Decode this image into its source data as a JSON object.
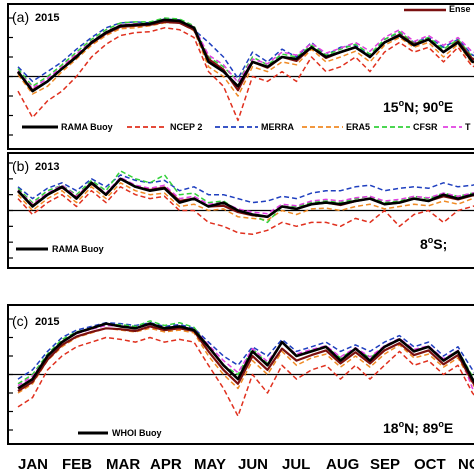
{
  "colors": {
    "rama_buoy": "#000000",
    "ncep2": "#e0301e",
    "merra": "#1f3fbf",
    "era5": "#f08a24",
    "cfsr": "#33d13a",
    "tropflux": "#e040e0",
    "ensemble": "#7a1010",
    "whoi_buoy": "#000000"
  },
  "x_axis": {
    "months": [
      "JAN",
      "FEB",
      "MAR",
      "APR",
      "MAY",
      "JUN",
      "JUL",
      "AUG",
      "SEP",
      "OCT",
      "NO"
    ]
  },
  "chart_data": [
    {
      "type": "line",
      "panel_label": "(a)",
      "year": "2015",
      "location": "15°N; 90°E",
      "location_parts": [
        "15",
        "o",
        "N; 90",
        "o",
        "E"
      ],
      "legend_items": [
        "RAMA Buoy",
        "NCEP 2",
        "MERRA",
        "ERA5",
        "CFSR",
        "T"
      ],
      "ensemble_legend": "Ense",
      "xlim": [
        0,
        10.6
      ],
      "ylim": [
        -6,
        6
      ],
      "zero_line": 0,
      "grid": false,
      "x": [
        0,
        0.33,
        0.67,
        1,
        1.33,
        1.67,
        2,
        2.33,
        2.67,
        3,
        3.33,
        3.67,
        4,
        4.33,
        4.67,
        5,
        5.33,
        5.67,
        6,
        6.33,
        6.67,
        7,
        7.33,
        7.67,
        8,
        8.33,
        8.67,
        9,
        9.33,
        9.67,
        10,
        10.33,
        10.6
      ],
      "series": [
        {
          "name": "RAMA Buoy",
          "values": [
            0.5,
            -1.5,
            -0.5,
            0.8,
            2.0,
            3.5,
            4.5,
            5.2,
            5.3,
            5.4,
            5.8,
            5.7,
            5.0,
            1.5,
            0.5,
            -1.0,
            1.5,
            1.0,
            2.0,
            1.8,
            3.0,
            2.0,
            2.5,
            3.0,
            2.0,
            3.5,
            4.2,
            3.2,
            3.8,
            2.5,
            3.5,
            1.5,
            1.8
          ]
        },
        {
          "name": "NCEP 2",
          "values": [
            -1.5,
            -4.2,
            -2.5,
            -1.5,
            0.0,
            2.0,
            3.3,
            4.2,
            4.5,
            4.6,
            5.0,
            4.8,
            4.0,
            0.5,
            -1.0,
            -4.5,
            0.0,
            -0.5,
            0.5,
            -0.5,
            2.0,
            0.5,
            1.0,
            2.0,
            0.5,
            2.5,
            3.5,
            2.5,
            3.0,
            1.5,
            3.0,
            1.0,
            1.5
          ]
        },
        {
          "name": "MERRA",
          "values": [
            1.0,
            -0.5,
            0.5,
            1.5,
            2.8,
            4.0,
            5.0,
            5.5,
            5.6,
            5.5,
            5.9,
            5.8,
            4.8,
            3.5,
            2.0,
            -0.2,
            2.5,
            1.5,
            2.8,
            2.0,
            3.5,
            2.2,
            3.0,
            3.2,
            2.2,
            3.8,
            4.5,
            3.5,
            4.0,
            3.0,
            3.8,
            2.2,
            2.0
          ]
        },
        {
          "name": "ERA5",
          "values": [
            0.2,
            -1.8,
            -1.0,
            0.5,
            1.8,
            3.2,
            4.2,
            4.9,
            5.0,
            5.2,
            5.5,
            5.5,
            4.7,
            1.0,
            0.0,
            -2.0,
            1.0,
            0.5,
            1.5,
            1.2,
            2.8,
            1.5,
            2.0,
            2.6,
            1.5,
            3.2,
            4.0,
            3.0,
            3.5,
            2.0,
            3.3,
            1.3,
            1.5
          ]
        },
        {
          "name": "CFSR",
          "values": [
            0.8,
            -1.0,
            0.0,
            1.2,
            2.5,
            3.8,
            4.8,
            5.5,
            5.6,
            5.6,
            6.0,
            5.9,
            5.2,
            2.0,
            1.0,
            -0.5,
            2.0,
            1.2,
            2.3,
            2.0,
            3.2,
            2.2,
            2.8,
            3.3,
            2.3,
            3.8,
            4.6,
            3.4,
            4.0,
            2.8,
            3.8,
            2.0,
            2.0
          ]
        },
        {
          "name": "T",
          "values": [
            0.6,
            -1.2,
            -0.2,
            1.0,
            2.3,
            3.6,
            4.6,
            5.3,
            5.4,
            5.4,
            5.8,
            5.7,
            5.1,
            2.2,
            1.2,
            -0.6,
            1.8,
            1.3,
            2.5,
            2.2,
            3.4,
            2.4,
            2.9,
            3.5,
            2.6,
            4.0,
            4.8,
            3.6,
            4.2,
            3.2,
            4.0,
            2.5,
            2.3
          ]
        },
        {
          "name": "Ense",
          "values": [
            0.4,
            -1.4,
            -0.5,
            0.8,
            2.1,
            3.4,
            4.4,
            5.1,
            5.2,
            5.3,
            5.6,
            5.5,
            4.8,
            1.8,
            0.7,
            -1.4,
            1.5,
            0.9,
            2.0,
            1.6,
            3.0,
            1.9,
            2.5,
            3.0,
            2.0,
            3.5,
            4.3,
            3.3,
            3.8,
            2.5,
            3.6,
            1.8,
            1.8
          ]
        }
      ]
    },
    {
      "type": "line",
      "panel_label": "(b)",
      "year": "2013",
      "location": "8°S;",
      "location_parts": [
        "8",
        "o",
        "S;"
      ],
      "legend_items": [
        "RAMA Buoy"
      ],
      "xlim": [
        0,
        10.6
      ],
      "ylim": [
        -6,
        6
      ],
      "zero_line": 0,
      "grid": false,
      "x": [
        0,
        0.33,
        0.67,
        1,
        1.33,
        1.67,
        2,
        2.33,
        2.67,
        3,
        3.33,
        3.67,
        4,
        4.33,
        4.67,
        5,
        5.33,
        5.67,
        6,
        6.33,
        6.67,
        7,
        7.33,
        7.67,
        8,
        8.33,
        8.67,
        9,
        9.33,
        9.67,
        10,
        10.33,
        10.6
      ],
      "series": [
        {
          "name": "RAMA Buoy",
          "values": [
            2.5,
            0.5,
            2.0,
            3.0,
            1.5,
            3.5,
            2.0,
            4.0,
            3.0,
            2.5,
            2.8,
            1.0,
            1.5,
            0.5,
            1.0,
            0.0,
            -0.5,
            -0.8,
            0.5,
            0.2,
            0.8,
            1.0,
            0.8,
            1.2,
            1.5,
            0.8,
            1.0,
            1.5,
            1.2,
            2.0,
            1.5,
            2.0,
            2.2
          ]
        },
        {
          "name": "NCEP 2",
          "values": [
            1.5,
            -0.5,
            1.0,
            2.0,
            0.5,
            2.5,
            1.0,
            3.0,
            2.0,
            1.5,
            1.8,
            0.0,
            0.0,
            -1.5,
            -2.0,
            -2.8,
            -3.0,
            -2.5,
            -1.5,
            -2.0,
            -1.5,
            -1.5,
            -2.0,
            -1.0,
            -1.5,
            0.0,
            -2.0,
            -0.5,
            0.0,
            -1.5,
            0.0,
            0.5,
            1.0
          ]
        },
        {
          "name": "MERRA",
          "values": [
            3.0,
            1.5,
            2.8,
            3.5,
            2.5,
            4.0,
            3.0,
            4.5,
            3.8,
            3.5,
            3.8,
            2.5,
            3.0,
            2.0,
            2.0,
            1.5,
            1.0,
            1.2,
            1.8,
            1.5,
            2.2,
            2.5,
            2.5,
            3.0,
            3.2,
            2.5,
            2.8,
            3.0,
            2.8,
            3.5,
            3.0,
            3.2,
            3.5
          ]
        },
        {
          "name": "ERA5",
          "values": [
            2.0,
            0.0,
            1.5,
            2.5,
            1.0,
            3.0,
            1.5,
            3.5,
            2.5,
            2.0,
            2.2,
            0.5,
            0.8,
            0.0,
            0.2,
            -0.8,
            -1.0,
            -1.2,
            0.0,
            -0.5,
            0.2,
            0.3,
            0.0,
            0.5,
            0.8,
            0.2,
            0.5,
            0.8,
            0.6,
            1.2,
            0.8,
            1.5,
            1.8
          ]
        },
        {
          "name": "CFSR",
          "values": [
            2.8,
            1.0,
            2.5,
            3.2,
            2.0,
            3.8,
            2.5,
            5.0,
            4.0,
            3.5,
            4.5,
            2.0,
            2.2,
            1.0,
            1.2,
            0.0,
            -0.5,
            -1.5,
            0.5,
            0.5,
            1.0,
            1.2,
            1.0,
            1.5,
            1.8,
            1.0,
            1.2,
            1.8,
            1.5,
            2.2,
            1.8,
            2.2,
            2.5
          ]
        },
        {
          "name": "T",
          "values": [
            2.6,
            0.8,
            2.2,
            3.2,
            1.8,
            3.6,
            2.2,
            4.2,
            3.2,
            2.8,
            3.2,
            1.5,
            1.8,
            0.8,
            1.0,
            0.2,
            -0.2,
            -0.4,
            0.8,
            0.6,
            1.2,
            1.4,
            1.2,
            1.6,
            1.8,
            1.2,
            1.4,
            1.8,
            1.6,
            2.2,
            1.8,
            2.2,
            2.4
          ]
        },
        {
          "name": "Ense",
          "values": [
            2.4,
            0.6,
            2.0,
            2.9,
            1.6,
            3.4,
            2.0,
            4.0,
            3.0,
            2.6,
            2.9,
            1.2,
            1.5,
            0.5,
            0.6,
            -0.2,
            -0.6,
            -0.8,
            0.5,
            0.2,
            0.8,
            1.0,
            0.7,
            1.2,
            1.5,
            0.8,
            1.0,
            1.5,
            1.2,
            1.8,
            1.4,
            1.9,
            2.2
          ]
        }
      ]
    },
    {
      "type": "line",
      "panel_label": "(c)",
      "year": "2015",
      "location": "18°N; 89°E",
      "location_parts": [
        "18",
        "o",
        "N; 89",
        "o",
        "E"
      ],
      "legend_items": [
        "WHOI Buoy"
      ],
      "xlim": [
        0,
        10.6
      ],
      "ylim": [
        -6,
        6
      ],
      "zero_line": 0,
      "grid": false,
      "x": [
        0,
        0.33,
        0.67,
        1,
        1.33,
        1.67,
        2,
        2.33,
        2.67,
        3,
        3.33,
        3.67,
        4,
        4.33,
        4.67,
        5,
        5.33,
        5.67,
        6,
        6.33,
        6.67,
        7,
        7.33,
        7.67,
        8,
        8.33,
        8.67,
        9,
        9.33,
        9.67,
        10,
        10.33,
        10.6
      ],
      "series": [
        {
          "name": "WHOI Buoy",
          "values": [
            -1.5,
            -0.5,
            2.0,
            3.5,
            4.5,
            5.0,
            5.5,
            5.2,
            5.0,
            5.5,
            5.0,
            5.2,
            4.8,
            3.0,
            1.0,
            -0.5,
            2.5,
            1.0,
            3.5,
            2.0,
            2.5,
            3.0,
            1.5,
            2.8,
            1.5,
            3.0,
            3.8,
            2.5,
            3.0,
            1.5,
            2.5,
            -0.5,
            -2.5
          ]
        },
        {
          "name": "NCEP 2",
          "values": [
            -3.5,
            -2.5,
            0.5,
            2.0,
            3.0,
            3.5,
            4.0,
            3.8,
            3.5,
            4.0,
            3.5,
            3.8,
            3.5,
            1.0,
            -1.5,
            -4.5,
            0.0,
            -2.0,
            1.0,
            -0.5,
            0.5,
            1.0,
            -0.5,
            1.0,
            -0.5,
            1.0,
            2.5,
            1.0,
            1.5,
            0.0,
            1.0,
            -2.0,
            -3.5
          ]
        },
        {
          "name": "MERRA",
          "values": [
            -0.5,
            0.5,
            2.5,
            4.0,
            4.8,
            5.2,
            5.6,
            5.5,
            5.3,
            5.6,
            5.2,
            5.4,
            5.0,
            3.5,
            2.0,
            1.0,
            3.0,
            2.0,
            3.8,
            2.5,
            3.0,
            3.5,
            2.5,
            3.2,
            2.5,
            3.5,
            4.2,
            3.0,
            3.5,
            2.0,
            3.0,
            0.5,
            -1.5
          ]
        },
        {
          "name": "ERA5",
          "values": [
            -2.0,
            -1.0,
            1.5,
            3.0,
            4.0,
            4.5,
            5.0,
            4.8,
            4.6,
            5.0,
            4.6,
            4.8,
            4.5,
            2.0,
            0.0,
            -1.5,
            1.5,
            0.0,
            2.5,
            1.0,
            1.8,
            2.2,
            0.8,
            2.0,
            0.8,
            2.2,
            3.2,
            1.8,
            2.2,
            0.8,
            1.8,
            -1.0,
            -3.0
          ]
        },
        {
          "name": "CFSR",
          "values": [
            -1.0,
            0.0,
            2.2,
            3.8,
            4.6,
            5.0,
            5.4,
            5.4,
            5.2,
            5.8,
            5.3,
            5.6,
            5.1,
            3.0,
            1.0,
            0.0,
            2.8,
            1.2,
            3.5,
            2.0,
            2.6,
            3.0,
            1.8,
            2.8,
            1.8,
            3.0,
            3.8,
            2.6,
            3.0,
            1.6,
            2.6,
            -0.2,
            -2.0
          ]
        },
        {
          "name": "T",
          "values": [
            -1.2,
            -0.2,
            2.0,
            3.6,
            4.4,
            4.9,
            5.3,
            5.2,
            5.0,
            5.4,
            5.0,
            5.2,
            4.9,
            3.2,
            1.5,
            0.2,
            2.8,
            1.4,
            3.4,
            2.2,
            2.7,
            3.1,
            1.9,
            2.9,
            1.9,
            3.1,
            3.9,
            2.7,
            3.1,
            1.7,
            2.6,
            -1.5,
            -3.0
          ]
        },
        {
          "name": "Ense",
          "values": [
            -1.8,
            -0.8,
            1.6,
            3.2,
            4.1,
            4.6,
            5.0,
            4.9,
            4.7,
            5.2,
            4.8,
            5.0,
            4.7,
            2.5,
            0.5,
            -1.0,
            2.0,
            0.5,
            2.8,
            1.5,
            2.1,
            2.6,
            1.2,
            2.4,
            1.2,
            2.6,
            3.4,
            2.1,
            2.6,
            1.1,
            2.1,
            -0.8,
            -2.6
          ]
        }
      ]
    }
  ]
}
